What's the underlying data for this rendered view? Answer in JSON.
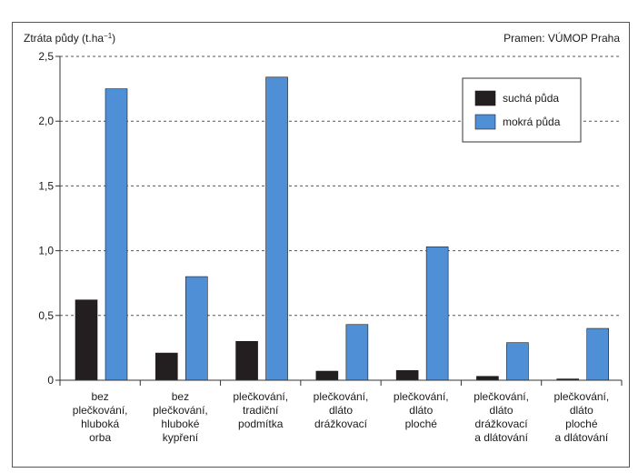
{
  "chart_data": {
    "type": "bar",
    "ylabel_main": "Ztráta půdy (t.ha",
    "ylabel_sup": "−1",
    "ylabel_close": ")",
    "source": "Pramen: VÚMOP Praha",
    "ylim": [
      0,
      2.5
    ],
    "yticks": [
      {
        "value": 0,
        "label": "0"
      },
      {
        "value": 0.5,
        "label": "0,5"
      },
      {
        "value": 1.0,
        "label": "1,0"
      },
      {
        "value": 1.5,
        "label": "1,5"
      },
      {
        "value": 2.0,
        "label": "2,0"
      },
      {
        "value": 2.5,
        "label": "2,5"
      }
    ],
    "grid": true,
    "legend_position": "top-right",
    "categories": [
      [
        "bez",
        "plečkování,",
        "hluboká",
        "orba"
      ],
      [
        "bez",
        "plečkování,",
        "hluboké",
        "kypření"
      ],
      [
        "plečkování,",
        "tradiční",
        "podmítka"
      ],
      [
        "plečkování,",
        "dláto",
        "drážkovací"
      ],
      [
        "plečkování,",
        "dláto",
        "ploché"
      ],
      [
        "plečkování,",
        "dláto",
        "drážkovací",
        "a dlátování"
      ],
      [
        "plečkování,",
        "dláto",
        "ploché",
        "a dlátování"
      ]
    ],
    "series": [
      {
        "name": "suchá půda",
        "color": "#231f20",
        "values": [
          0.62,
          0.21,
          0.3,
          0.07,
          0.075,
          0.03,
          0.01
        ]
      },
      {
        "name": "mokrá půda",
        "color": "#4f8fd6",
        "values": [
          2.25,
          0.8,
          2.34,
          0.43,
          1.03,
          0.29,
          0.4
        ]
      }
    ]
  }
}
